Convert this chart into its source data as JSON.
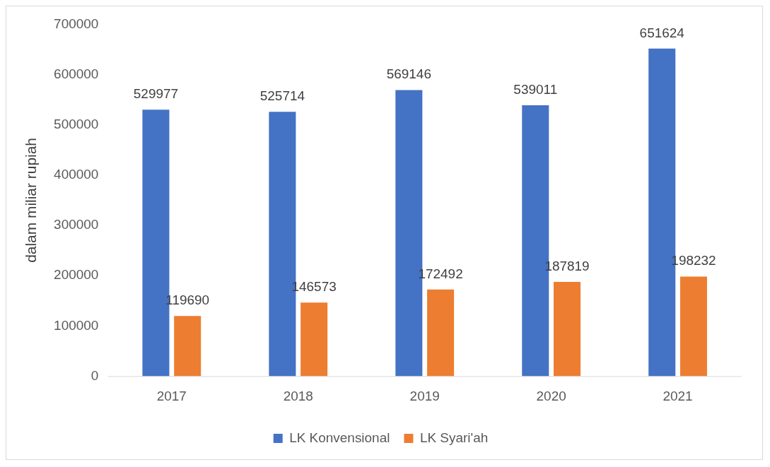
{
  "chart_data": {
    "type": "bar",
    "ylabel": "dalam miliar rupiah",
    "categories": [
      "2017",
      "2018",
      "2019",
      "2020",
      "2021"
    ],
    "series": [
      {
        "name": "LK Konvensional",
        "color": "#4472c4",
        "values": [
          529977,
          525714,
          569146,
          539011,
          651624
        ]
      },
      {
        "name": "LK Syari'ah",
        "color": "#ed7d31",
        "values": [
          119690,
          146573,
          172492,
          187819,
          198232
        ]
      }
    ],
    "ylim": [
      0,
      700000
    ],
    "yticks": [
      0,
      100000,
      200000,
      300000,
      400000,
      500000,
      600000,
      700000
    ],
    "grid": false,
    "legend": "bottom",
    "data_labels": true
  }
}
